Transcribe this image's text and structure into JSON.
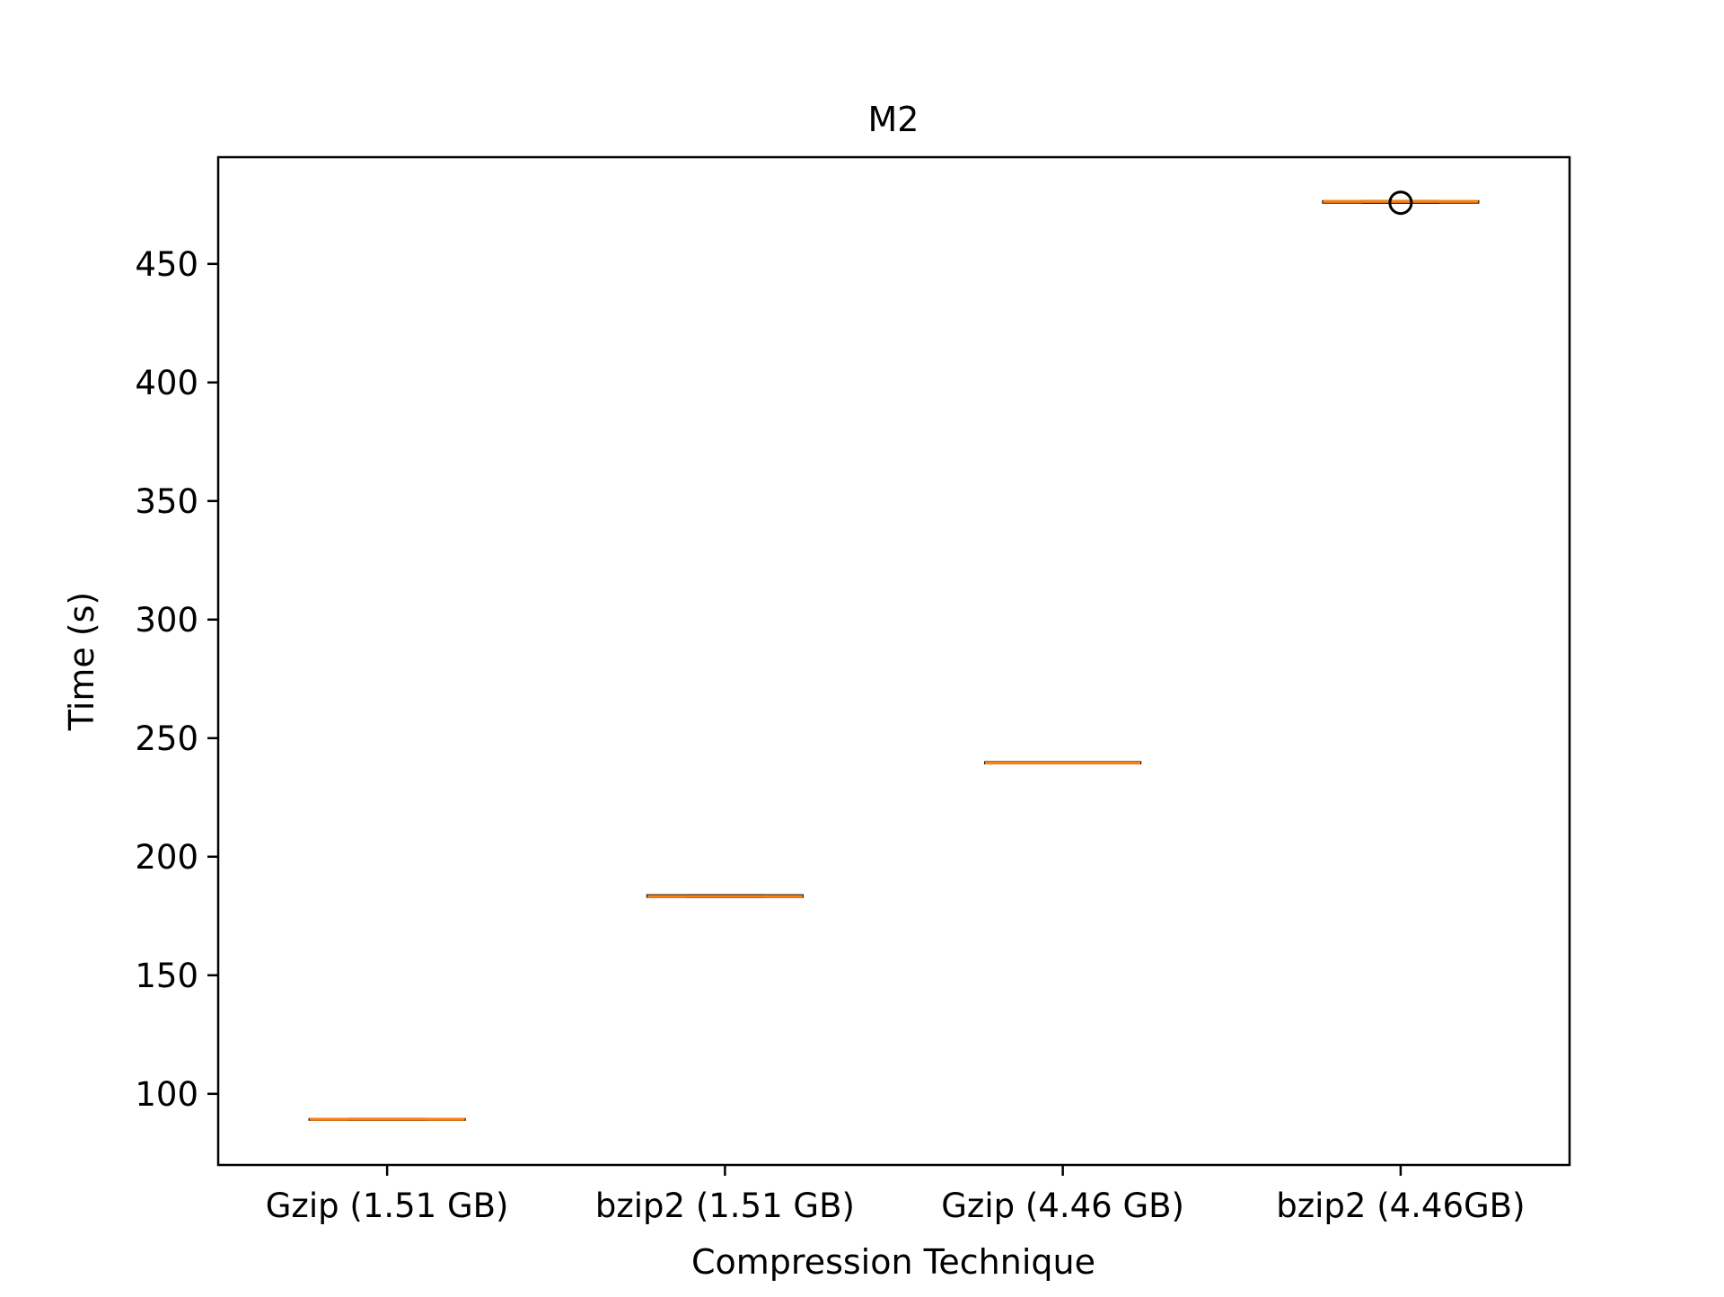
{
  "chart_data": {
    "type": "box",
    "title": "M2",
    "xlabel": "Compression Technique",
    "ylabel": "Time (s)",
    "ylim": [
      70,
      495
    ],
    "yticks": [
      100,
      150,
      200,
      250,
      300,
      350,
      400,
      450
    ],
    "categories": [
      "Gzip (1.51 GB)",
      "bzip2 (1.51 GB)",
      "Gzip (4.46 GB)",
      "bzip2 (4.46GB)"
    ],
    "boxes": [
      {
        "category": "Gzip (1.51 GB)",
        "whisker_low": 89.0,
        "q1": 89.0,
        "median": 89.2,
        "q3": 89.4,
        "whisker_high": 89.4,
        "outliers": []
      },
      {
        "category": "bzip2 (1.51 GB)",
        "whisker_low": 183.0,
        "q1": 183.0,
        "median": 183.3,
        "q3": 183.8,
        "whisker_high": 183.8,
        "outliers": []
      },
      {
        "category": "Gzip (4.46 GB)",
        "whisker_low": 239.3,
        "q1": 239.3,
        "median": 239.5,
        "q3": 239.9,
        "whisker_high": 239.9,
        "outliers": []
      },
      {
        "category": "bzip2 (4.46GB)",
        "whisker_low": 475.8,
        "q1": 475.8,
        "median": 476.3,
        "q3": 476.5,
        "whisker_high": 476.5,
        "outliers": [
          475.8
        ]
      }
    ],
    "colors": {
      "median": "#ff7f0e",
      "box": "#000000",
      "axes": "#000000"
    },
    "grid": false,
    "legend": "none"
  }
}
